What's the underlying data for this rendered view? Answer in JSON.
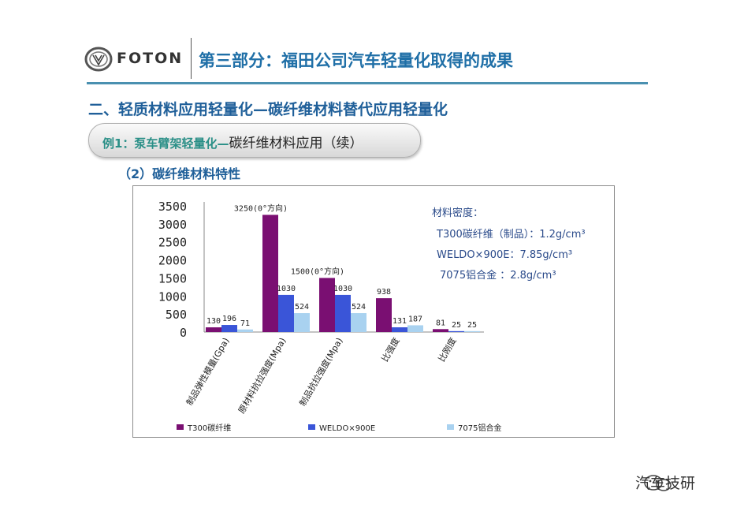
{
  "header": {
    "brand": "FOTON",
    "section_title": "第三部分：福田公司汽车轻量化取得的成果"
  },
  "subtitle": "二、轻质材料应用轻量化—碳纤维材料替代应用轻量化",
  "example": {
    "lead": "例1：泵车臂架轻量化—",
    "tail": "碳纤维材料应用（续）"
  },
  "section_2": "（2）碳纤维材料特性",
  "density": {
    "title": "材料密度：",
    "lines": [
      "T300碳纤维（制品）：1.2g/cm³",
      "WELDO×900E：7.85g/cm³",
      "7075铝合金 ：2.8g/cm³"
    ]
  },
  "watermark": "汽车技研",
  "colors": {
    "t300": "#7a0f72",
    "weldo": "#3a55d8",
    "al7075": "#a9d2f0",
    "title_blue": "#1f6fa7",
    "rule": "#4a90b0"
  },
  "chart_data": {
    "type": "bar",
    "categories": [
      "制品弹性模量(Gpa)",
      "原材料抗拉强度(Mpa)",
      "制品抗拉强度(Mpa)",
      "比强度",
      "比刚度"
    ],
    "series": [
      {
        "name": "T300碳纤维",
        "values": [
          130,
          3250,
          1500,
          938,
          81
        ]
      },
      {
        "name": "WELDO×900E",
        "values": [
          196,
          1030,
          1030,
          131,
          25
        ]
      },
      {
        "name": "7075铝合金",
        "values": [
          71,
          524,
          524,
          187,
          25
        ]
      }
    ],
    "data_labels": [
      [
        "130",
        "196",
        "71"
      ],
      [
        "3250(0°方向)",
        "1030",
        "524"
      ],
      [
        "1500(0°方向)",
        "1030",
        "524"
      ],
      [
        "938",
        "131",
        "187"
      ],
      [
        "81",
        "25",
        "25"
      ]
    ],
    "yticks": [
      "3500",
      "3000",
      "2500",
      "2000",
      "1500",
      "1000",
      "500",
      "0"
    ],
    "ylim": [
      0,
      3500
    ],
    "legend_position": "bottom",
    "grid": false
  }
}
